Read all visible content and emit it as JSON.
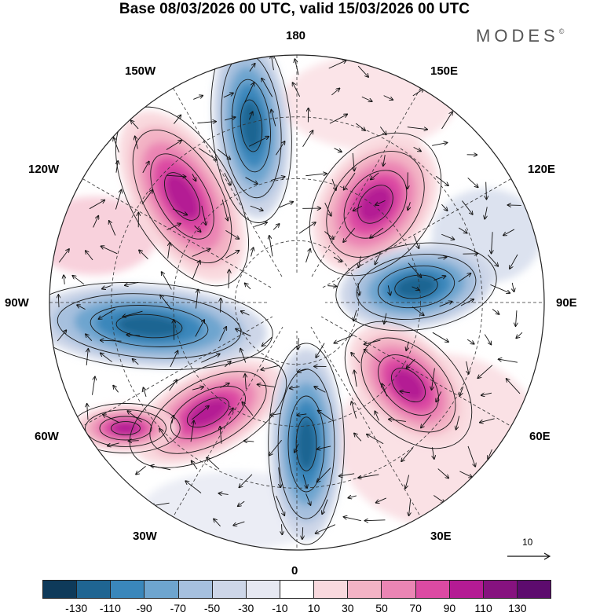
{
  "header": {
    "title": "Base 08/03/2026 00 UTC, valid 15/03/2026 00 UTC",
    "brand": "MODES",
    "brand_mark": "©"
  },
  "map": {
    "projection": "north polar stereographic",
    "longitude_labels": {
      "top": "180",
      "bottom": "0",
      "left": "90W",
      "right": "90E",
      "upper_left_1": "150W",
      "upper_left_2": "120W",
      "upper_right_1": "150E",
      "upper_right_2": "120E",
      "lower_left_1": "60W",
      "lower_left_2": "30W",
      "lower_right_1": "60E",
      "lower_right_2": "30E"
    },
    "reference_vector": {
      "label": "10"
    }
  },
  "colorbar": {
    "colors": [
      "#0e3a5a",
      "#1f6592",
      "#3a87bb",
      "#6ea5cf",
      "#a6c0de",
      "#cdd6e8",
      "#e6e8f2",
      "#ffffff",
      "#f9d9de",
      "#f3b3c5",
      "#eb85b4",
      "#dc4aa3",
      "#b41b94",
      "#86127f",
      "#5d0b6e"
    ],
    "tick_labels": [
      "-130",
      "-110",
      "-90",
      "-70",
      "-50",
      "-30",
      "-10",
      "10",
      "30",
      "50",
      "70",
      "90",
      "110",
      "130"
    ]
  }
}
